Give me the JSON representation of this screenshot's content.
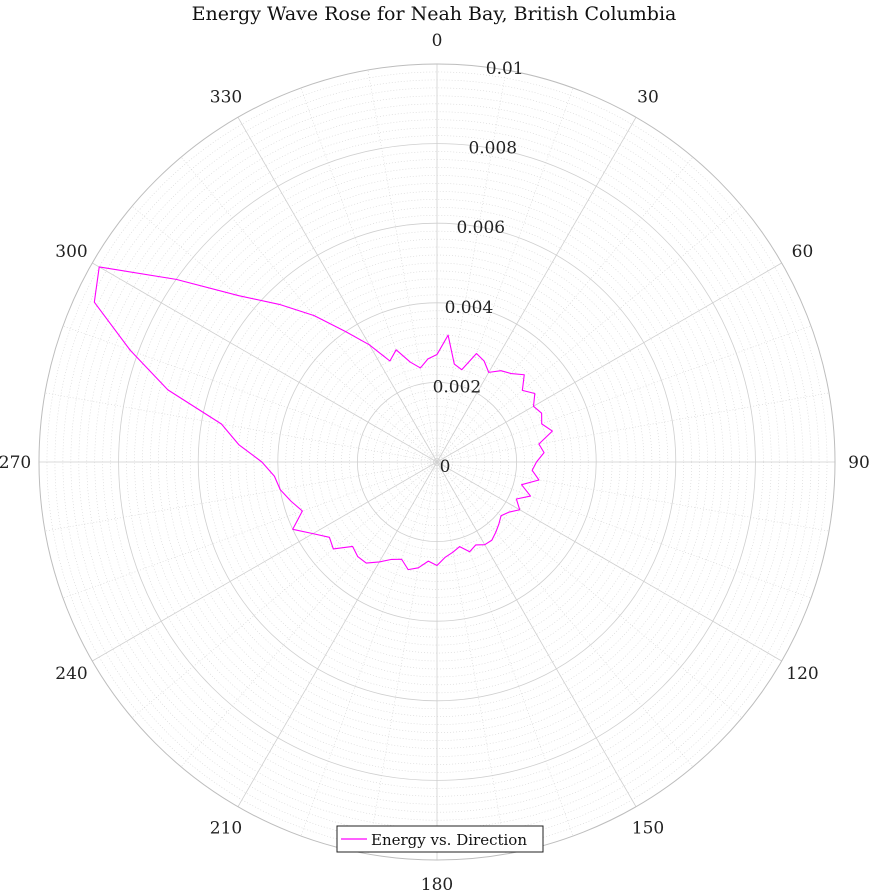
{
  "chart_data": {
    "type": "line",
    "subtype": "polar",
    "title": "Energy Wave Rose for Neah Bay, British Columbia",
    "angle_direction": "clockwise",
    "zero_direction": "top",
    "angle_unit": "degrees",
    "theta_ticks": [
      "0",
      "30",
      "60",
      "90",
      "120",
      "150",
      "180",
      "210",
      "240",
      "270",
      "300",
      "330"
    ],
    "r_ticks": [
      "0",
      "0.002",
      "0.004",
      "0.006",
      "0.008",
      "0.01"
    ],
    "rlim": [
      0,
      0.01
    ],
    "grid": true,
    "minor_grid": true,
    "legend_position": "bottom",
    "series": [
      {
        "name": "Energy vs. Direction",
        "color": "#ff00ff",
        "theta": [
          0,
          5,
          10,
          15,
          20,
          25,
          30,
          35,
          40,
          45,
          50,
          55,
          60,
          65,
          70,
          75,
          80,
          85,
          90,
          95,
          100,
          105,
          110,
          115,
          120,
          125,
          130,
          135,
          140,
          145,
          150,
          155,
          160,
          165,
          170,
          175,
          180,
          185,
          190,
          195,
          200,
          205,
          210,
          215,
          220,
          225,
          230,
          235,
          240,
          245,
          250,
          255,
          260,
          265,
          270,
          275,
          280,
          285,
          290,
          295,
          300,
          305,
          310,
          315,
          320,
          325,
          330,
          335,
          340,
          345,
          350,
          355,
          360
        ],
        "r": [
          0.0027,
          0.0032,
          0.0025,
          0.0024,
          0.0029,
          0.0028,
          0.0026,
          0.0028,
          0.0029,
          0.0031,
          0.0028,
          0.003,
          0.0028,
          0.0029,
          0.0028,
          0.003,
          0.0026,
          0.0027,
          0.0025,
          0.0024,
          0.0026,
          0.0022,
          0.0025,
          0.0022,
          0.0024,
          0.0022,
          0.0021,
          0.0022,
          0.0023,
          0.0024,
          0.0024,
          0.0023,
          0.0024,
          0.0022,
          0.0023,
          0.0024,
          0.0026,
          0.0025,
          0.0027,
          0.0028,
          0.0026,
          0.0027,
          0.0029,
          0.0031,
          0.0031,
          0.003,
          0.0034,
          0.0033,
          0.0036,
          0.004,
          0.0036,
          0.0038,
          0.004,
          0.0041,
          0.0044,
          0.005,
          0.0055,
          0.007,
          0.0082,
          0.0095,
          0.0098,
          0.008,
          0.0065,
          0.0056,
          0.0048,
          0.004,
          0.0034,
          0.0028,
          0.003,
          0.0026,
          0.0024,
          0.0026,
          0.0027
        ]
      }
    ]
  }
}
